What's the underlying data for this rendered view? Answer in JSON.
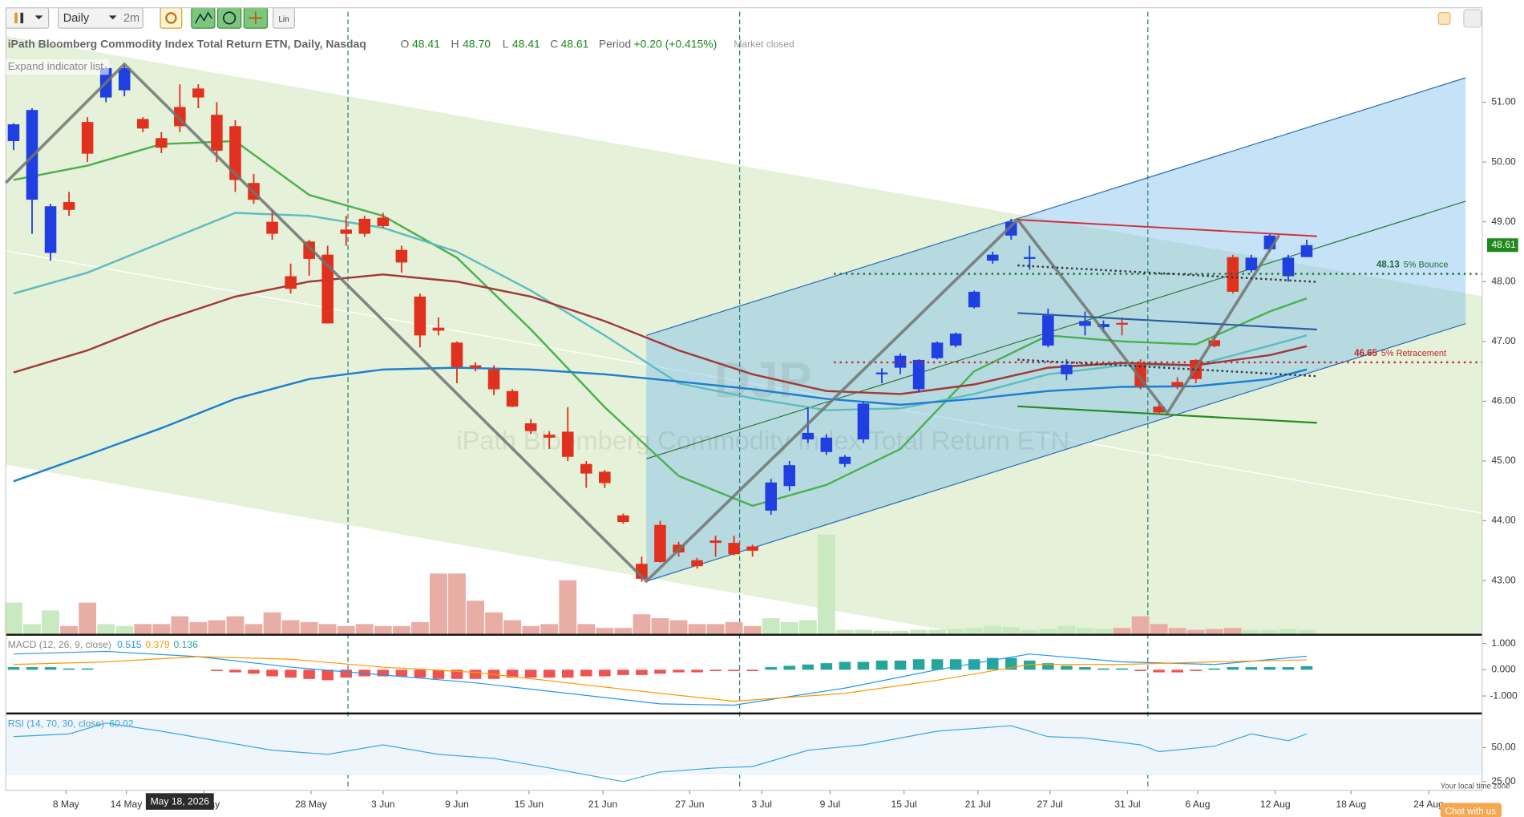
{
  "toolbar": {
    "interval": "Daily",
    "range": "2m",
    "scale": "Lin"
  },
  "header": {
    "ohlc": [
      {
        "label": "O",
        "value": "48.41"
      },
      {
        "label": "H",
        "value": "48.70"
      },
      {
        "label": "L",
        "value": "48.41"
      },
      {
        "label": "C",
        "value": "48.61"
      }
    ],
    "period_label": "Period",
    "period_value": "+0.20 (+0.415%)",
    "status": "Market closed",
    "expand": "Expand indicator list"
  },
  "footer": {
    "crosshair_date": "May 18, 2026",
    "timezone": "Your local time zone",
    "chat": "Chat with us"
  },
  "chart_data": [
    {
      "type": "candlestick",
      "title": "iPath Bloomberg Commodity Index Total Return ETN, Daily, Nasdaq",
      "watermark_symbol": "DJP",
      "watermark_name": "iPath Bloomberg Commodity Index Total Return ETN",
      "xlim": [
        -0.42,
        79.5
      ],
      "ylim": [
        42.11,
        52.58
      ],
      "yticks": [
        {
          "value": 43,
          "label": "43.00"
        },
        {
          "value": 44,
          "label": "44.00"
        },
        {
          "value": 45,
          "label": "45.00"
        },
        {
          "value": 46,
          "label": "46.00"
        },
        {
          "value": 47,
          "label": "47.00"
        },
        {
          "value": 48,
          "label": "48.00"
        },
        {
          "value": 49,
          "label": "49.00"
        },
        {
          "value": 50,
          "label": "50.00"
        },
        {
          "value": 51,
          "label": "51.00"
        }
      ],
      "xticks": [
        {
          "value": 2.84,
          "label": "8 May"
        },
        {
          "value": 6.1,
          "label": "14 May"
        },
        {
          "value": 10.3,
          "label": "21 May"
        },
        {
          "value": 16.1,
          "label": "28 May"
        },
        {
          "value": 20,
          "label": "3 Jun"
        },
        {
          "value": 24,
          "label": "9 Jun"
        },
        {
          "value": 27.9,
          "label": "15 Jun"
        },
        {
          "value": 31.9,
          "label": "21 Jun"
        },
        {
          "value": 36.6,
          "label": "27 Jun"
        },
        {
          "value": 40.5,
          "label": "3 Jul"
        },
        {
          "value": 44.2,
          "label": "9 Jul"
        },
        {
          "value": 48.2,
          "label": "15 Jul"
        },
        {
          "value": 52.2,
          "label": "21 Jul"
        },
        {
          "value": 56.1,
          "label": "27 Jul"
        },
        {
          "value": 60.3,
          "label": "31 Jul"
        },
        {
          "value": 64.1,
          "label": "6 Aug"
        },
        {
          "value": 68.3,
          "label": "12 Aug"
        },
        {
          "value": 72.4,
          "label": "18 Aug"
        },
        {
          "value": 76.6,
          "label": "24 Aug"
        }
      ],
      "up_color": "#1f3fe0",
      "down_color": "#e0301e",
      "volume_up_color": "#c9e9c1",
      "volume_down_color": "#e8ada4",
      "open": [
        50.35,
        49.37,
        48.48,
        49.33,
        50.67,
        51.08,
        51.2,
        50.72,
        50.4,
        50.92,
        51.23,
        50.79,
        50.6,
        49.65,
        49.0,
        48.09,
        48.67,
        48.45,
        48.87,
        49.05,
        49.07,
        48.53,
        47.75,
        47.23,
        46.98,
        46.6,
        46.53,
        46.17,
        45.63,
        45.44,
        45.49,
        44.95,
        44.82,
        44.09,
        43.28,
        43.93,
        43.6,
        43.34,
        43.67,
        43.63,
        43.57,
        44.17,
        44.58,
        45.36,
        45.15,
        44.95,
        45.36,
        46.45,
        46.56,
        46.2,
        46.72,
        46.93,
        47.57,
        48.35,
        48.77,
        48.38,
        46.93,
        46.45,
        47.26,
        47.24,
        47.31,
        46.61,
        45.91,
        46.32,
        46.69,
        47.02,
        48.41,
        48.19,
        48.54,
        48.09,
        48.41
      ],
      "high": [
        50.65,
        50.9,
        49.3,
        49.5,
        50.75,
        51.6,
        51.63,
        50.75,
        50.5,
        51.3,
        51.3,
        51.0,
        50.7,
        49.8,
        49.2,
        48.3,
        48.7,
        48.6,
        49.1,
        49.1,
        49.15,
        48.6,
        47.8,
        47.4,
        47.0,
        46.65,
        46.6,
        46.2,
        45.7,
        45.5,
        45.9,
        45.0,
        44.85,
        44.12,
        43.4,
        44.0,
        43.65,
        43.38,
        43.75,
        43.75,
        43.6,
        44.7,
        45.0,
        45.9,
        45.45,
        45.1,
        46.0,
        46.55,
        46.8,
        46.7,
        47.0,
        47.15,
        47.85,
        48.5,
        49.05,
        48.6,
        47.55,
        46.7,
        47.5,
        47.35,
        47.4,
        46.7,
        46.0,
        46.4,
        46.7,
        47.1,
        48.45,
        48.45,
        48.8,
        48.45,
        48.7
      ],
      "low": [
        50.2,
        48.8,
        48.35,
        49.1,
        50.0,
        51.0,
        51.1,
        50.5,
        50.15,
        50.5,
        50.9,
        50.0,
        49.5,
        49.3,
        48.7,
        47.8,
        48.1,
        47.3,
        48.6,
        48.75,
        48.9,
        48.15,
        46.9,
        47.1,
        46.3,
        46.5,
        46.1,
        45.9,
        45.45,
        45.2,
        45.0,
        44.55,
        44.55,
        43.95,
        42.98,
        43.3,
        43.4,
        43.2,
        43.4,
        43.42,
        43.4,
        44.1,
        44.5,
        45.3,
        45.1,
        44.9,
        45.3,
        46.3,
        46.45,
        46.15,
        46.7,
        46.9,
        47.55,
        48.3,
        48.7,
        48.2,
        46.9,
        46.35,
        47.1,
        47.15,
        47.1,
        46.2,
        45.78,
        46.2,
        46.3,
        46.9,
        47.8,
        48.15,
        48.5,
        48.0,
        48.41
      ],
      "close": [
        50.63,
        50.87,
        49.26,
        49.2,
        50.14,
        51.57,
        51.57,
        50.56,
        50.24,
        50.6,
        51.08,
        50.19,
        49.7,
        49.37,
        48.8,
        47.88,
        48.38,
        47.3,
        48.8,
        48.8,
        48.93,
        48.32,
        47.1,
        47.18,
        46.57,
        46.56,
        46.2,
        45.91,
        45.5,
        45.39,
        45.07,
        44.79,
        44.63,
        43.98,
        43.03,
        43.31,
        43.47,
        43.24,
        43.63,
        43.44,
        43.5,
        44.64,
        44.93,
        45.47,
        45.39,
        45.07,
        45.96,
        46.48,
        46.76,
        46.69,
        46.98,
        47.13,
        47.83,
        48.45,
        49.0,
        48.41,
        47.46,
        46.61,
        47.34,
        47.29,
        47.28,
        46.25,
        45.81,
        46.25,
        46.37,
        46.92,
        47.83,
        48.4,
        48.77,
        48.4,
        48.61
      ],
      "volume": [
        32,
        10,
        24,
        8,
        32,
        10,
        8,
        10,
        10,
        18,
        12,
        14,
        18,
        10,
        22,
        14,
        12,
        10,
        8,
        10,
        8,
        8,
        12,
        62,
        62,
        34,
        22,
        14,
        8,
        10,
        55,
        10,
        6,
        6,
        20,
        16,
        14,
        10,
        10,
        12,
        8,
        16,
        12,
        14,
        102,
        4,
        4,
        3,
        3,
        4,
        4,
        5,
        6,
        8,
        7,
        4,
        5,
        8,
        6,
        5,
        6,
        18,
        10,
        6,
        4,
        5,
        6,
        4,
        4,
        5,
        4
      ],
      "series": [
        {
          "color": "#4caf50",
          "x": [
            0,
            4,
            8,
            12,
            16,
            20,
            24,
            28,
            32,
            36,
            40,
            44,
            48,
            52,
            56,
            60,
            64,
            68,
            70
          ],
          "values": [
            49.7,
            49.94,
            50.3,
            50.35,
            49.45,
            49.1,
            48.4,
            47.2,
            45.9,
            44.75,
            44.25,
            44.6,
            45.2,
            46.5,
            47.1,
            47.0,
            46.95,
            47.5,
            47.72
          ]
        },
        {
          "color": "#5bbdc0",
          "x": [
            0,
            4,
            8,
            12,
            16,
            20,
            24,
            28,
            32,
            36,
            40,
            44,
            48,
            52,
            56,
            60,
            64,
            68,
            70
          ],
          "values": [
            47.8,
            48.15,
            48.65,
            49.15,
            49.1,
            48.9,
            48.5,
            47.85,
            47.1,
            46.3,
            46.05,
            45.85,
            45.88,
            46.12,
            46.45,
            46.6,
            46.6,
            46.93,
            47.1
          ]
        },
        {
          "color": "#a0393a",
          "x": [
            0,
            4,
            8,
            12,
            16,
            20,
            24,
            28,
            32,
            36,
            40,
            44,
            48,
            52,
            56,
            60,
            64,
            68,
            70
          ],
          "values": [
            46.48,
            46.85,
            47.34,
            47.75,
            48.0,
            48.12,
            48.0,
            47.75,
            47.34,
            46.85,
            46.45,
            46.17,
            46.12,
            46.28,
            46.56,
            46.64,
            46.6,
            46.77,
            46.92
          ]
        },
        {
          "color": "#1e7fd0",
          "x": [
            0,
            4,
            8,
            12,
            16,
            20,
            24,
            28,
            32,
            36,
            40,
            44,
            48,
            52,
            56,
            60,
            64,
            68,
            70
          ],
          "values": [
            44.66,
            45.1,
            45.55,
            46.04,
            46.37,
            46.53,
            46.56,
            46.53,
            46.45,
            46.33,
            46.2,
            46.04,
            45.94,
            46.04,
            46.17,
            46.24,
            46.25,
            46.37,
            46.53
          ]
        }
      ],
      "levels": [
        {
          "value": 48.13,
          "text": "5% Bounce",
          "color": "#1e6b3a"
        },
        {
          "value": 46.65,
          "text": "5% Retracement",
          "color": "#c0282d"
        }
      ],
      "last_price": 48.61,
      "last_price_color": "#1b8a1b"
    },
    {
      "type": "macd",
      "title": "MACD (12, 26, 9, close)",
      "xlim": [
        -0.42,
        79.5
      ],
      "ylim": [
        -1.63,
        1.26
      ],
      "yticks": [
        {
          "value": 1,
          "label": "1.000"
        },
        {
          "value": 0,
          "label": "0.000"
        },
        {
          "value": -1,
          "label": "-1.000"
        }
      ],
      "series": [
        {
          "color": "#2196f3",
          "x": [
            0,
            5,
            10,
            15,
            20,
            25,
            30,
            35,
            39,
            45,
            50,
            55,
            60,
            65,
            70
          ],
          "values": [
            0.6,
            0.7,
            0.5,
            0.1,
            -0.2,
            -0.5,
            -0.9,
            -1.3,
            -1.35,
            -0.7,
            0.0,
            0.6,
            0.3,
            0.2,
            0.515
          ]
        },
        {
          "color": "#ff9800",
          "x": [
            0,
            5,
            10,
            15,
            20,
            25,
            30,
            35,
            39,
            45,
            50,
            55,
            60,
            65,
            70
          ],
          "values": [
            0.2,
            0.3,
            0.5,
            0.4,
            0.1,
            -0.1,
            -0.5,
            -0.9,
            -1.2,
            -0.9,
            -0.4,
            0.2,
            0.2,
            0.3,
            0.379
          ]
        }
      ],
      "histogram": [
        0.1,
        0.1,
        0.1,
        0.05,
        0.05,
        0,
        0,
        0,
        0,
        0,
        0,
        -0.05,
        -0.1,
        -0.15,
        -0.25,
        -0.3,
        -0.35,
        -0.4,
        -0.3,
        -0.25,
        -0.25,
        -0.25,
        -0.3,
        -0.35,
        -0.35,
        -0.35,
        -0.35,
        -0.3,
        -0.3,
        -0.3,
        -0.3,
        -0.25,
        -0.25,
        -0.2,
        -0.2,
        -0.15,
        -0.1,
        -0.1,
        -0.05,
        -0.05,
        -0.05,
        0.1,
        0.15,
        0.2,
        0.25,
        0.3,
        0.3,
        0.35,
        0.35,
        0.4,
        0.4,
        0.4,
        0.4,
        0.45,
        0.45,
        0.35,
        0.25,
        0.15,
        0.1,
        0.05,
        0.05,
        -0.05,
        -0.1,
        -0.1,
        -0.05,
        0.05,
        0.1,
        0.1,
        0.1,
        0.1,
        0.136
      ],
      "histogram_up_color": "#26a69a",
      "histogram_down_color": "#ef5350"
    },
    {
      "type": "rsi",
      "title": "RSI (14, 70, 30, close)",
      "xlim": [
        -0.42,
        79.5
      ],
      "ylim": [
        18.6,
        73.6
      ],
      "yticks": [
        {
          "value": 50,
          "label": "50.00"
        },
        {
          "value": 25,
          "label": "25.00"
        }
      ],
      "series": [
        {
          "color": "#3fa6e0",
          "x": [
            0,
            3,
            5,
            8,
            11,
            14,
            17,
            20,
            23,
            26,
            29,
            33,
            35,
            38,
            40,
            43,
            46,
            50,
            54,
            56,
            58,
            61,
            62,
            65,
            67,
            69,
            70
          ],
          "values": [
            58,
            60,
            68,
            62,
            55,
            48,
            45,
            52,
            45,
            42,
            35,
            25,
            32,
            35,
            36,
            48,
            52,
            62,
            66,
            58,
            57,
            52,
            47,
            51,
            60,
            55,
            60.02
          ]
        }
      ]
    }
  ]
}
